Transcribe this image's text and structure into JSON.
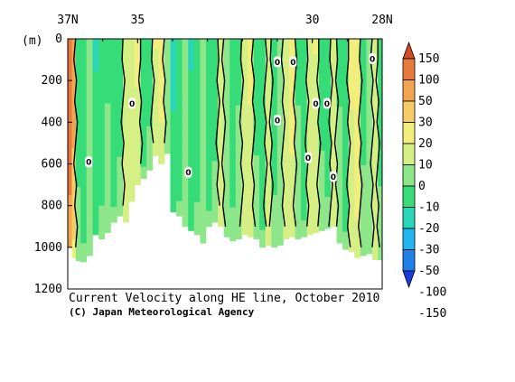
{
  "chart_data": {
    "type": "heatmap",
    "title": "Current Velocity along HE line, October 2010",
    "credit": "(C) Japan Meteorological Agency",
    "ylabel": "(m)",
    "x_ticks": [
      {
        "lat": 37,
        "label": "37N"
      },
      {
        "lat": 35,
        "label": "35"
      },
      {
        "lat": 30,
        "label": "30"
      },
      {
        "lat": 28,
        "label": "28N"
      }
    ],
    "xlim": [
      37,
      28
    ],
    "y_ticks": [
      0,
      200,
      400,
      600,
      800,
      1000,
      1200
    ],
    "ylim": [
      0,
      1200
    ],
    "colorbar": {
      "levels": [
        -150,
        -100,
        -50,
        -30,
        -20,
        -10,
        0,
        10,
        20,
        30,
        50,
        100,
        150
      ],
      "labels": [
        "150",
        "100",
        "50",
        "30",
        "20",
        "10",
        "0",
        "-10",
        "-20",
        "-30",
        "-50",
        "-100",
        "-150"
      ],
      "colors": [
        "#1a3ad9",
        "#1f7fe8",
        "#22b6f0",
        "#2bd6b8",
        "#35dc78",
        "#8ee68a",
        "#d6ef85",
        "#f1ee7b",
        "#f5cc66",
        "#f2a451",
        "#e77a3c",
        "#cf4a26"
      ]
    },
    "stations": [
      {
        "lat": 36.94,
        "depth": 1000,
        "v": 80
      },
      {
        "lat": 36.83,
        "depth": 1050,
        "v": 40
      },
      {
        "lat": 36.72,
        "depth": 1065,
        "v": -15
      },
      {
        "lat": 36.55,
        "depth": 1070,
        "v": -20
      },
      {
        "lat": 36.38,
        "depth": 1040,
        "v": -10
      },
      {
        "lat": 36.2,
        "depth": 940,
        "v": -22
      },
      {
        "lat": 36.03,
        "depth": 960,
        "v": -18
      },
      {
        "lat": 35.86,
        "depth": 930,
        "v": -12
      },
      {
        "lat": 35.69,
        "depth": 880,
        "v": -20
      },
      {
        "lat": 35.5,
        "depth": 850,
        "v": -15
      },
      {
        "lat": 35.34,
        "depth": 880,
        "v": 5
      },
      {
        "lat": 35.17,
        "depth": 780,
        "v": 8
      },
      {
        "lat": 35.0,
        "depth": 700,
        "v": 12
      },
      {
        "lat": 34.83,
        "depth": 670,
        "v": -20
      },
      {
        "lat": 34.66,
        "depth": 630,
        "v": -15
      },
      {
        "lat": 34.49,
        "depth": 560,
        "v": 10
      },
      {
        "lat": 34.32,
        "depth": 600,
        "v": 15
      },
      {
        "lat": 34.15,
        "depth": 550,
        "v": -10
      },
      {
        "lat": 33.98,
        "depth": 830,
        "v": -25
      },
      {
        "lat": 33.81,
        "depth": 850,
        "v": -20
      },
      {
        "lat": 33.64,
        "depth": 900,
        "v": -8
      },
      {
        "lat": 33.47,
        "depth": 920,
        "v": -22
      },
      {
        "lat": 33.3,
        "depth": 940,
        "v": -18
      },
      {
        "lat": 33.13,
        "depth": 980,
        "v": -5
      },
      {
        "lat": 32.96,
        "depth": 900,
        "v": -20
      },
      {
        "lat": 32.79,
        "depth": 880,
        "v": -15
      },
      {
        "lat": 32.62,
        "depth": 900,
        "v": 2
      },
      {
        "lat": 32.45,
        "depth": 950,
        "v": -10
      },
      {
        "lat": 32.28,
        "depth": 970,
        "v": -18
      },
      {
        "lat": 32.11,
        "depth": 960,
        "v": -12
      },
      {
        "lat": 31.94,
        "depth": 940,
        "v": 6
      },
      {
        "lat": 31.77,
        "depth": 950,
        "v": 12
      },
      {
        "lat": 31.6,
        "depth": 960,
        "v": -14
      },
      {
        "lat": 31.43,
        "depth": 1000,
        "v": -20
      },
      {
        "lat": 31.26,
        "depth": 990,
        "v": 4
      },
      {
        "lat": 31.09,
        "depth": 1000,
        "v": -16
      },
      {
        "lat": 30.92,
        "depth": 990,
        "v": -10
      },
      {
        "lat": 30.75,
        "depth": 960,
        "v": 8
      },
      {
        "lat": 30.58,
        "depth": 950,
        "v": 14
      },
      {
        "lat": 30.41,
        "depth": 960,
        "v": -12
      },
      {
        "lat": 30.24,
        "depth": 950,
        "v": -20
      },
      {
        "lat": 30.07,
        "depth": 940,
        "v": 3
      },
      {
        "lat": 29.9,
        "depth": 930,
        "v": 10
      },
      {
        "lat": 29.73,
        "depth": 920,
        "v": -14
      },
      {
        "lat": 29.56,
        "depth": 910,
        "v": -18
      },
      {
        "lat": 29.39,
        "depth": 900,
        "v": 6
      },
      {
        "lat": 29.22,
        "depth": 980,
        "v": -12
      },
      {
        "lat": 29.05,
        "depth": 1010,
        "v": -20
      },
      {
        "lat": 28.88,
        "depth": 1020,
        "v": 12
      },
      {
        "lat": 28.71,
        "depth": 1050,
        "v": 18
      },
      {
        "lat": 28.54,
        "depth": 1040,
        "v": -14
      },
      {
        "lat": 28.37,
        "depth": 1030,
        "v": -8
      },
      {
        "lat": 28.2,
        "depth": 1060,
        "v": 9
      },
      {
        "lat": 28.05,
        "depth": 1060,
        "v": -15
      }
    ],
    "zero_contour_labels": [
      {
        "lat": 36.4,
        "depth": 590,
        "label": "0"
      },
      {
        "lat": 35.16,
        "depth": 310,
        "label": "0"
      },
      {
        "lat": 33.55,
        "depth": 640,
        "label": "0"
      },
      {
        "lat": 31.0,
        "depth": 110,
        "label": "0"
      },
      {
        "lat": 31.0,
        "depth": 390,
        "label": "0"
      },
      {
        "lat": 30.55,
        "depth": 110,
        "label": "0"
      },
      {
        "lat": 29.9,
        "depth": 310,
        "label": "0"
      },
      {
        "lat": 29.58,
        "depth": 310,
        "label": "0"
      },
      {
        "lat": 30.12,
        "depth": 570,
        "label": "0"
      },
      {
        "lat": 29.4,
        "depth": 660,
        "label": "0"
      },
      {
        "lat": 28.28,
        "depth": 95,
        "label": "0"
      }
    ]
  }
}
